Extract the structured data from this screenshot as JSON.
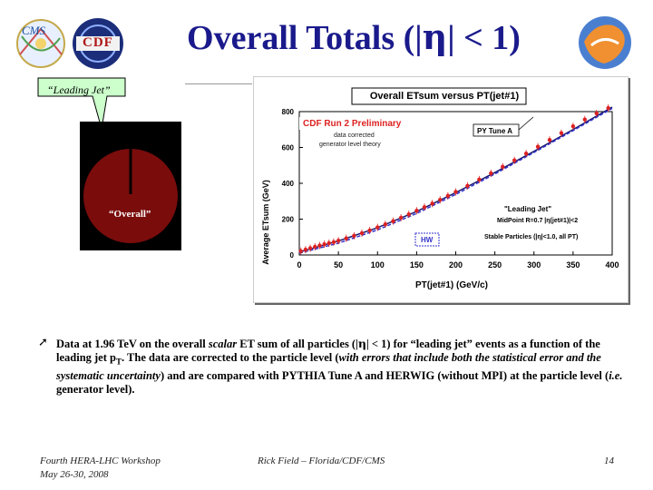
{
  "slide": {
    "title_prefix": "Overall Totals (|",
    "title_symbol": "η",
    "title_suffix": "| < 1)",
    "callout_label": "“Leading Jet”",
    "pie_label": "“Overall”",
    "bullet": {
      "p1": "Data at 1.96 TeV on the overall ",
      "p2": "scalar",
      "p3": " ET sum of all particles (|",
      "p3sym": "η",
      "p4": "| < 1) for “leading jet” events as a function of the leading jet p",
      "p4sub": "T",
      "p5": ". The data are corrected to the particle level (",
      "p6": "with errors that include both the statistical error and the systematic uncertainty",
      "p7": ") and are compared with PYTHIA Tune A and HERWIG (without MPI) at the particle level (",
      "p8": "i.e.",
      "p9": " generator level)."
    },
    "footer": {
      "workshop": "Fourth HERA-LHC Workshop",
      "dates": "May 26-30, 2008",
      "author": "Rick Field – Florida/CDF/CMS",
      "page": "14"
    },
    "logos": {
      "cms": "CMS",
      "cdf": "CDF"
    },
    "colors": {
      "title": "#1a1a8c",
      "pie": "#7a0c0c",
      "data": "#dd2222",
      "pytune": "#1a1a6e",
      "herwig": "#3333cc"
    }
  },
  "chart_data": {
    "type": "line",
    "title": "Overall ETsum versus PT(jet#1)",
    "banner": "CDF Run 2 Preliminary",
    "banner_sub1": "data corrected",
    "banner_sub2": "generator level theory",
    "xlabel": "PT(jet#1)   (GeV/c)",
    "ylabel": "Average ETsum (GeV)",
    "xlim": [
      0,
      400
    ],
    "ylim": [
      0,
      800
    ],
    "xticks": [
      0,
      50,
      100,
      150,
      200,
      250,
      300,
      350,
      400
    ],
    "yticks": [
      0,
      200,
      400,
      600,
      800
    ],
    "annotations": {
      "pytune_label": "PY Tune A",
      "herwig_label": "HW",
      "jet_label": "\"Leading Jet\"",
      "jet_cut": "MidPoint R=0.7 |η(jet#1)|<2",
      "stable": "Stable Particles (|η|<1.0, all PT)"
    },
    "series": [
      {
        "name": "data",
        "x": [
          2,
          8,
          14,
          20,
          26,
          32,
          38,
          44,
          50,
          60,
          70,
          80,
          90,
          100,
          110,
          120,
          130,
          140,
          150,
          160,
          170,
          180,
          190,
          200,
          215,
          230,
          245,
          260,
          275,
          290,
          305,
          320,
          335,
          350,
          365,
          380,
          395
        ],
        "y": [
          22,
          30,
          38,
          46,
          53,
          60,
          66,
          72,
          80,
          93,
          107,
          122,
          137,
          154,
          171,
          189,
          208,
          227,
          247,
          267,
          287,
          308,
          330,
          352,
          386,
          421,
          456,
          492,
          528,
          566,
          604,
          642,
          680,
          718,
          756,
          790,
          820
        ]
      },
      {
        "name": "PY Tune A",
        "x": [
          0,
          50,
          100,
          150,
          200,
          250,
          300,
          350,
          400
        ],
        "y": [
          16,
          78,
          152,
          243,
          348,
          460,
          578,
          700,
          825
        ]
      },
      {
        "name": "HW",
        "x": [
          0,
          50,
          100,
          150,
          200,
          250,
          300,
          350,
          400
        ],
        "y": [
          10,
          66,
          140,
          232,
          338,
          452,
          572,
          694,
          818
        ]
      }
    ]
  }
}
